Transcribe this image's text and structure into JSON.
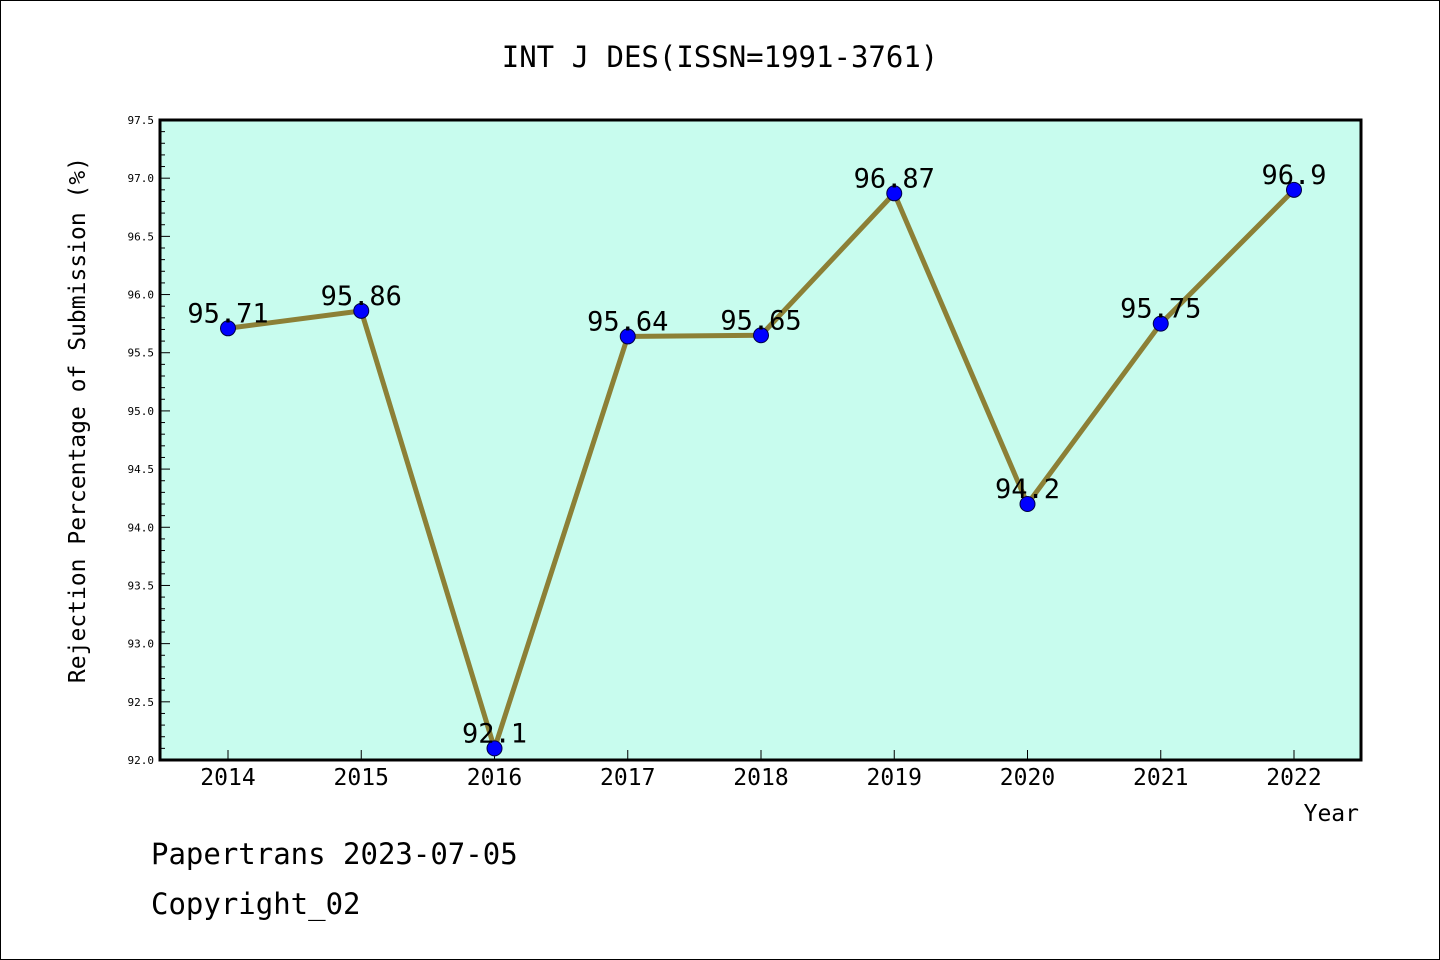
{
  "footer": {
    "publisher_date": "Papertrans 2023-07-05",
    "copyright": "Copyright_02"
  },
  "colors": {
    "plot_background": "#c8fcee",
    "line": "#8c8036",
    "marker": "#0000ff"
  },
  "chart_data": {
    "type": "line",
    "title": "INT J DES(ISSN=1991-3761)",
    "xlabel": "Year",
    "ylabel": "Rejection Percentage of Submission (%)",
    "categories": [
      "2014",
      "2015",
      "2016",
      "2017",
      "2018",
      "2019",
      "2020",
      "2021",
      "2022"
    ],
    "series": [
      {
        "values": [
          95.71,
          95.86,
          92.1,
          95.64,
          95.65,
          96.87,
          94.2,
          95.75,
          96.9
        ],
        "labels": [
          "95.71",
          "95.86",
          "92.1",
          "95.64",
          "95.65",
          "96.87",
          "94.2",
          "95.75",
          "96.9"
        ]
      }
    ],
    "ylim": [
      92.0,
      97.5
    ],
    "yticks": [
      "92.0",
      "92.5",
      "93.0",
      "93.5",
      "94.0",
      "94.5",
      "95.0",
      "95.5",
      "96.0",
      "96.5",
      "97.0",
      "97.5"
    ],
    "grid": false,
    "legend": "none"
  }
}
